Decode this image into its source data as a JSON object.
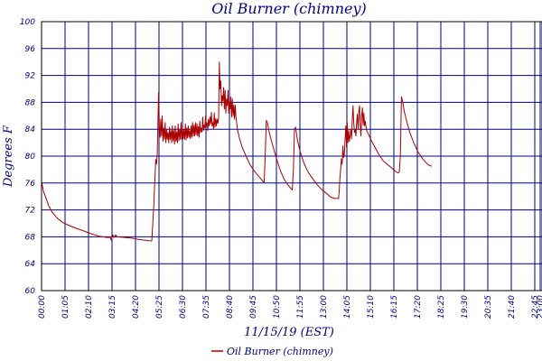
{
  "chart_data": {
    "type": "line",
    "title": "Oil Burner (chimney)",
    "xlabel": "11/15/19 (EST)",
    "ylabel": "Degrees F",
    "ylim": [
      60,
      100
    ],
    "yticks": [
      60,
      64,
      68,
      72,
      76,
      80,
      84,
      88,
      92,
      96,
      100
    ],
    "xlim_minutes": [
      0,
      1385
    ],
    "xticks": [
      {
        "label": "00:00",
        "minute": 0
      },
      {
        "label": "01:05",
        "minute": 65
      },
      {
        "label": "02:10",
        "minute": 130
      },
      {
        "label": "03:15",
        "minute": 195
      },
      {
        "label": "04:20",
        "minute": 260
      },
      {
        "label": "05:25",
        "minute": 325
      },
      {
        "label": "06:30",
        "minute": 390
      },
      {
        "label": "07:35",
        "minute": 455
      },
      {
        "label": "08:40",
        "minute": 520
      },
      {
        "label": "09:45",
        "minute": 585
      },
      {
        "label": "10:50",
        "minute": 650
      },
      {
        "label": "11:55",
        "minute": 715
      },
      {
        "label": "13:00",
        "minute": 780
      },
      {
        "label": "14:05",
        "minute": 845
      },
      {
        "label": "15:10",
        "minute": 910
      },
      {
        "label": "16:15",
        "minute": 975
      },
      {
        "label": "17:20",
        "minute": 1040
      },
      {
        "label": "18:25",
        "minute": 1105
      },
      {
        "label": "19:30",
        "minute": 1170
      },
      {
        "label": "20:35",
        "minute": 1235
      },
      {
        "label": "21:40",
        "minute": 1300
      },
      {
        "label": "22:45",
        "minute": 1365
      },
      {
        "label": "23:00",
        "minute": 1380
      }
    ],
    "grid": true,
    "legend_position": "bottom-center",
    "series": [
      {
        "name": "Oil Burner (chimney)",
        "color": "#aa0000",
        "points": [
          [
            0,
            76.3
          ],
          [
            5,
            74.8
          ],
          [
            12,
            73.8
          ],
          [
            20,
            72.6
          ],
          [
            30,
            71.6
          ],
          [
            45,
            70.7
          ],
          [
            60,
            70.1
          ],
          [
            80,
            69.6
          ],
          [
            100,
            69.2
          ],
          [
            120,
            68.8
          ],
          [
            140,
            68.4
          ],
          [
            160,
            68.1
          ],
          [
            180,
            67.9
          ],
          [
            190,
            67.9
          ],
          [
            193,
            67.5
          ],
          [
            197,
            68.3
          ],
          [
            200,
            67.9
          ],
          [
            205,
            68.3
          ],
          [
            210,
            68.0
          ],
          [
            230,
            67.9
          ],
          [
            250,
            67.8
          ],
          [
            270,
            67.6
          ],
          [
            300,
            67.4
          ],
          [
            305,
            67.4
          ],
          [
            310,
            72.0
          ],
          [
            314,
            77.0
          ],
          [
            316,
            79.5
          ],
          [
            318,
            78.8
          ],
          [
            320,
            80.0
          ],
          [
            322,
            85.0
          ],
          [
            324,
            89.5
          ],
          [
            326,
            84.5
          ],
          [
            328,
            82.8
          ],
          [
            330,
            85.5
          ],
          [
            332,
            83.0
          ],
          [
            334,
            86.0
          ],
          [
            336,
            82.2
          ],
          [
            338,
            84.2
          ],
          [
            340,
            82.5
          ],
          [
            342,
            85.0
          ],
          [
            344,
            82.0
          ],
          [
            346,
            84.0
          ],
          [
            348,
            82.5
          ],
          [
            350,
            83.5
          ],
          [
            352,
            82.0
          ],
          [
            354,
            84.3
          ],
          [
            356,
            82.5
          ],
          [
            358,
            83.8
          ],
          [
            360,
            82.0
          ],
          [
            362,
            84.5
          ],
          [
            364,
            82.3
          ],
          [
            366,
            83.8
          ],
          [
            368,
            81.8
          ],
          [
            370,
            84.5
          ],
          [
            372,
            82.2
          ],
          [
            374,
            83.6
          ],
          [
            376,
            82.0
          ],
          [
            378,
            84.8
          ],
          [
            380,
            82.3
          ],
          [
            382,
            84.0
          ],
          [
            384,
            82.5
          ],
          [
            386,
            85.0
          ],
          [
            388,
            82.5
          ],
          [
            390,
            84.2
          ],
          [
            392,
            82.6
          ],
          [
            394,
            83.9
          ],
          [
            396,
            82.5
          ],
          [
            398,
            84.8
          ],
          [
            400,
            82.4
          ],
          [
            402,
            84.2
          ],
          [
            404,
            82.7
          ],
          [
            406,
            84.5
          ],
          [
            408,
            82.8
          ],
          [
            410,
            83.8
          ],
          [
            412,
            82.6
          ],
          [
            414,
            84.5
          ],
          [
            416,
            82.8
          ],
          [
            418,
            85.0
          ],
          [
            420,
            83.0
          ],
          [
            422,
            84.6
          ],
          [
            424,
            83.0
          ],
          [
            426,
            85.0
          ],
          [
            428,
            83.2
          ],
          [
            430,
            84.8
          ],
          [
            432,
            83.0
          ],
          [
            434,
            84.4
          ],
          [
            436,
            82.8
          ],
          [
            438,
            85.2
          ],
          [
            440,
            83.5
          ],
          [
            442,
            84.2
          ],
          [
            444,
            83.6
          ],
          [
            446,
            85.8
          ],
          [
            448,
            83.8
          ],
          [
            450,
            84.6
          ],
          [
            452,
            84.2
          ],
          [
            454,
            86.0
          ],
          [
            456,
            84.4
          ],
          [
            458,
            85.0
          ],
          [
            460,
            83.8
          ],
          [
            462,
            85.5
          ],
          [
            464,
            84.5
          ],
          [
            466,
            85.8
          ],
          [
            468,
            84.8
          ],
          [
            470,
            86.5
          ],
          [
            472,
            84.5
          ],
          [
            474,
            85.0
          ],
          [
            476,
            84.0
          ],
          [
            478,
            86.4
          ],
          [
            480,
            84.3
          ],
          [
            482,
            85.6
          ],
          [
            484,
            84.5
          ],
          [
            486,
            85.5
          ],
          [
            488,
            84.9
          ],
          [
            490,
            85.6
          ],
          [
            492,
            94.0
          ],
          [
            494,
            90.0
          ],
          [
            496,
            91.2
          ],
          [
            498,
            87.5
          ],
          [
            500,
            89.0
          ],
          [
            502,
            88.2
          ],
          [
            504,
            90.2
          ],
          [
            506,
            87.0
          ],
          [
            508,
            89.8
          ],
          [
            510,
            86.4
          ],
          [
            512,
            88.5
          ],
          [
            514,
            87.5
          ],
          [
            516,
            89.8
          ],
          [
            518,
            86.4
          ],
          [
            520,
            88.2
          ],
          [
            522,
            87.0
          ],
          [
            524,
            88.8
          ],
          [
            526,
            85.8
          ],
          [
            528,
            88.5
          ],
          [
            530,
            86.0
          ],
          [
            532,
            87.6
          ],
          [
            534,
            85.5
          ],
          [
            536,
            87.6
          ],
          [
            538,
            85.8
          ],
          [
            540,
            85.0
          ],
          [
            542,
            84.0
          ],
          [
            548,
            82.6
          ],
          [
            556,
            81.2
          ],
          [
            566,
            80.0
          ],
          [
            576,
            78.8
          ],
          [
            586,
            78.0
          ],
          [
            596,
            77.3
          ],
          [
            606,
            76.7
          ],
          [
            612,
            76.3
          ],
          [
            616,
            76.1
          ],
          [
            619,
            80.0
          ],
          [
            622,
            85.3
          ],
          [
            625,
            85.0
          ],
          [
            630,
            83.6
          ],
          [
            638,
            81.9
          ],
          [
            646,
            80.4
          ],
          [
            654,
            79.0
          ],
          [
            662,
            77.7
          ],
          [
            672,
            76.5
          ],
          [
            682,
            75.7
          ],
          [
            690,
            75.2
          ],
          [
            694,
            75.0
          ],
          [
            697,
            78.0
          ],
          [
            700,
            84.0
          ],
          [
            703,
            84.3
          ],
          [
            708,
            82.4
          ],
          [
            716,
            80.6
          ],
          [
            726,
            79.0
          ],
          [
            736,
            77.8
          ],
          [
            748,
            76.8
          ],
          [
            762,
            75.8
          ],
          [
            776,
            75.0
          ],
          [
            790,
            74.4
          ],
          [
            800,
            73.9
          ],
          [
            810,
            73.7
          ],
          [
            820,
            73.7
          ],
          [
            822,
            73.7
          ],
          [
            824,
            75.0
          ],
          [
            826,
            77.0
          ],
          [
            828,
            78.2
          ],
          [
            830,
            79.6
          ],
          [
            832,
            78.8
          ],
          [
            834,
            81.5
          ],
          [
            836,
            79.8
          ],
          [
            838,
            80.2
          ],
          [
            840,
            82.5
          ],
          [
            842,
            84.5
          ],
          [
            844,
            81.3
          ],
          [
            846,
            85.0
          ],
          [
            848,
            82.0
          ],
          [
            850,
            83.8
          ],
          [
            852,
            82.2
          ],
          [
            854,
            83.0
          ],
          [
            856,
            84.0
          ],
          [
            858,
            82.6
          ],
          [
            860,
            85.5
          ],
          [
            862,
            87.5
          ],
          [
            864,
            85.0
          ],
          [
            866,
            83.5
          ],
          [
            868,
            84.0
          ],
          [
            870,
            83.0
          ],
          [
            872,
            85.0
          ],
          [
            874,
            86.2
          ],
          [
            876,
            84.0
          ],
          [
            878,
            86.6
          ],
          [
            880,
            87.5
          ],
          [
            882,
            84.5
          ],
          [
            884,
            83.0
          ],
          [
            886,
            86.0
          ],
          [
            888,
            87.2
          ],
          [
            890,
            84.6
          ],
          [
            892,
            86.4
          ],
          [
            894,
            84.5
          ],
          [
            896,
            85.2
          ],
          [
            898,
            84.3
          ],
          [
            900,
            83.8
          ],
          [
            910,
            82.6
          ],
          [
            920,
            81.6
          ],
          [
            932,
            80.4
          ],
          [
            944,
            79.4
          ],
          [
            956,
            78.8
          ],
          [
            968,
            78.3
          ],
          [
            978,
            77.8
          ],
          [
            986,
            77.5
          ],
          [
            990,
            77.6
          ],
          [
            993,
            80.0
          ],
          [
            996,
            88.8
          ],
          [
            999,
            88.2
          ],
          [
            1004,
            86.6
          ],
          [
            1012,
            84.9
          ],
          [
            1020,
            83.4
          ],
          [
            1030,
            82.0
          ],
          [
            1042,
            80.6
          ],
          [
            1056,
            79.5
          ],
          [
            1070,
            78.7
          ],
          [
            1080,
            78.5
          ]
        ]
      }
    ]
  }
}
